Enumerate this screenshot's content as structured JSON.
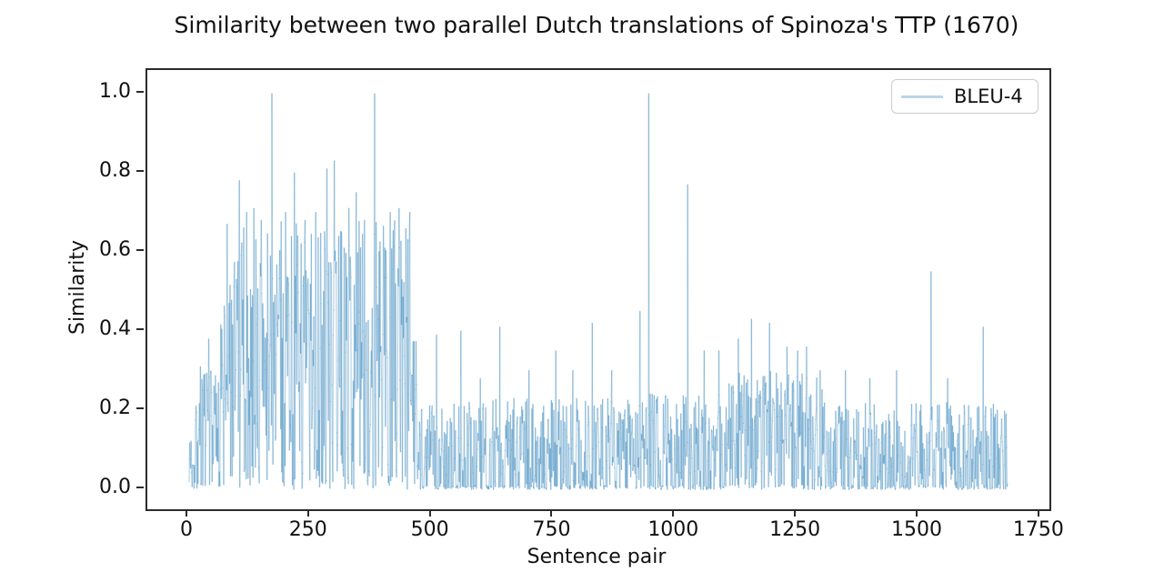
{
  "chart_data": {
    "type": "line",
    "title": "Similarity between two parallel Dutch translations of Spinoza's TTP (1670)",
    "xlabel": "Sentence pair",
    "ylabel": "Similarity",
    "x_axis": {
      "lim": [
        -84,
        1769
      ],
      "ticks": [
        "0",
        "250",
        "500",
        "750",
        "1000",
        "1250",
        "1500",
        "1750"
      ]
    },
    "y_axis": {
      "lim": [
        -0.05,
        1.06
      ],
      "ticks": [
        "0.0",
        "0.2",
        "0.4",
        "0.6",
        "0.8",
        "1.0"
      ]
    },
    "grid": false,
    "legend_position": "upper right",
    "legend_border_color": "#cccccc",
    "spine_color": "#2b2b2b",
    "background_color": "#ffffff",
    "series": [
      {
        "name": "BLEU-4",
        "color": "#1f77b4",
        "opacity": 0.3,
        "x_start": 2,
        "x_end": 1683,
        "seed": 7,
        "band_segments": [
          {
            "from": 2,
            "to": 14,
            "min": 0.02,
            "max": 0.16,
            "zero_prob": 0.2
          },
          {
            "from": 14,
            "to": 62,
            "min": 0.02,
            "max": 0.3,
            "zero_prob": 0.25
          },
          {
            "from": 62,
            "to": 95,
            "min": 0.05,
            "max": 0.55,
            "zero_prob": 0.18
          },
          {
            "from": 95,
            "to": 455,
            "min": 0.06,
            "max": 0.68,
            "zero_prob": 0.2
          },
          {
            "from": 455,
            "to": 478,
            "min": 0.03,
            "max": 0.38,
            "zero_prob": 0.2
          },
          {
            "from": 478,
            "to": 935,
            "min": 0.01,
            "max": 0.23,
            "zero_prob": 0.25
          },
          {
            "from": 935,
            "to": 1105,
            "min": 0.01,
            "max": 0.25,
            "zero_prob": 0.25
          },
          {
            "from": 1105,
            "to": 1305,
            "min": 0.02,
            "max": 0.3,
            "zero_prob": 0.22
          },
          {
            "from": 1305,
            "to": 1684,
            "min": 0.01,
            "max": 0.22,
            "zero_prob": 0.25
          }
        ],
        "peaks": [
          [
            25,
            0.31
          ],
          [
            42,
            0.38
          ],
          [
            80,
            0.67
          ],
          [
            105,
            0.78
          ],
          [
            120,
            0.7
          ],
          [
            135,
            0.71
          ],
          [
            150,
            0.68
          ],
          [
            172,
            1.0
          ],
          [
            200,
            0.7
          ],
          [
            218,
            0.8
          ],
          [
            240,
            0.68
          ],
          [
            262,
            0.7
          ],
          [
            285,
            0.81
          ],
          [
            300,
            0.83
          ],
          [
            330,
            0.71
          ],
          [
            345,
            0.75
          ],
          [
            362,
            0.68
          ],
          [
            383,
            1.0
          ],
          [
            415,
            0.7
          ],
          [
            433,
            0.71
          ],
          [
            455,
            0.7
          ],
          [
            510,
            0.39
          ],
          [
            560,
            0.4
          ],
          [
            600,
            0.28
          ],
          [
            640,
            0.41
          ],
          [
            700,
            0.3
          ],
          [
            755,
            0.35
          ],
          [
            790,
            0.3
          ],
          [
            830,
            0.42
          ],
          [
            870,
            0.3
          ],
          [
            928,
            0.45
          ],
          [
            946,
            1.0
          ],
          [
            1026,
            0.77
          ],
          [
            1060,
            0.35
          ],
          [
            1090,
            0.35
          ],
          [
            1130,
            0.38
          ],
          [
            1157,
            0.43
          ],
          [
            1194,
            0.42
          ],
          [
            1230,
            0.36
          ],
          [
            1252,
            0.35
          ],
          [
            1270,
            0.36
          ],
          [
            1298,
            0.3
          ],
          [
            1350,
            0.3
          ],
          [
            1400,
            0.28
          ],
          [
            1455,
            0.3
          ],
          [
            1526,
            0.55
          ],
          [
            1560,
            0.28
          ],
          [
            1633,
            0.41
          ]
        ]
      }
    ]
  }
}
